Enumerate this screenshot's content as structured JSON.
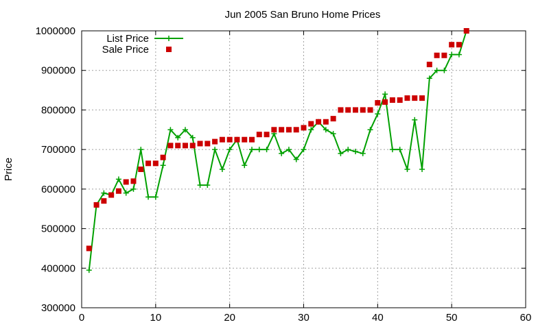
{
  "chart_data": {
    "type": "line",
    "title": "Jun 2005 San Bruno Home Prices",
    "xlabel": "",
    "ylabel": "Price",
    "xlim": [
      0,
      60
    ],
    "ylim": [
      300000,
      1000000
    ],
    "xticks": [
      "0",
      "10",
      "20",
      "30",
      "40",
      "50",
      "60"
    ],
    "yticks": [
      "300000",
      "400000",
      "500000",
      "600000",
      "700000",
      "800000",
      "900000",
      "1000000"
    ],
    "grid": true,
    "legend_position": "top-left",
    "series": [
      {
        "name": "List Price",
        "style": "line-with-plus-markers",
        "color": "#00a000",
        "x": [
          1,
          2,
          3,
          4,
          5,
          6,
          7,
          8,
          9,
          10,
          11,
          12,
          13,
          14,
          15,
          16,
          17,
          18,
          19,
          20,
          21,
          22,
          23,
          24,
          25,
          26,
          27,
          28,
          29,
          30,
          31,
          32,
          33,
          34,
          35,
          36,
          37,
          38,
          39,
          40,
          41,
          42,
          43,
          44,
          45,
          46,
          47,
          48,
          49,
          50,
          51,
          52
        ],
        "y": [
          395000,
          560000,
          590000,
          585000,
          625000,
          590000,
          600000,
          700000,
          580000,
          580000,
          660000,
          750000,
          730000,
          750000,
          730000,
          610000,
          610000,
          700000,
          650000,
          700000,
          725000,
          660000,
          700000,
          700000,
          700000,
          740000,
          690000,
          700000,
          675000,
          700000,
          750000,
          770000,
          750000,
          740000,
          690000,
          700000,
          695000,
          690000,
          750000,
          790000,
          840000,
          700000,
          700000,
          650000,
          775000,
          650000,
          880000,
          900000,
          900000,
          940000,
          940000,
          1000000
        ]
      },
      {
        "name": "Sale Price",
        "style": "square-markers",
        "color": "#cc0000",
        "x": [
          1,
          2,
          3,
          4,
          5,
          6,
          7,
          8,
          9,
          10,
          11,
          12,
          13,
          14,
          15,
          16,
          17,
          18,
          19,
          20,
          21,
          22,
          23,
          24,
          25,
          26,
          27,
          28,
          29,
          30,
          31,
          32,
          33,
          34,
          35,
          36,
          37,
          38,
          39,
          40,
          41,
          42,
          43,
          44,
          45,
          46,
          47,
          48,
          49,
          50,
          51,
          52
        ],
        "y": [
          450000,
          560000,
          570000,
          585000,
          595000,
          618000,
          620000,
          650000,
          665000,
          665000,
          680000,
          710000,
          710000,
          710000,
          710000,
          715000,
          715000,
          720000,
          725000,
          725000,
          725000,
          725000,
          725000,
          738000,
          738000,
          750000,
          750000,
          750000,
          750000,
          755000,
          765000,
          770000,
          770000,
          778000,
          800000,
          800000,
          800000,
          800000,
          800000,
          818000,
          820000,
          825000,
          825000,
          830000,
          830000,
          830000,
          915000,
          938000,
          938000,
          965000,
          965000,
          1000000
        ]
      }
    ]
  }
}
